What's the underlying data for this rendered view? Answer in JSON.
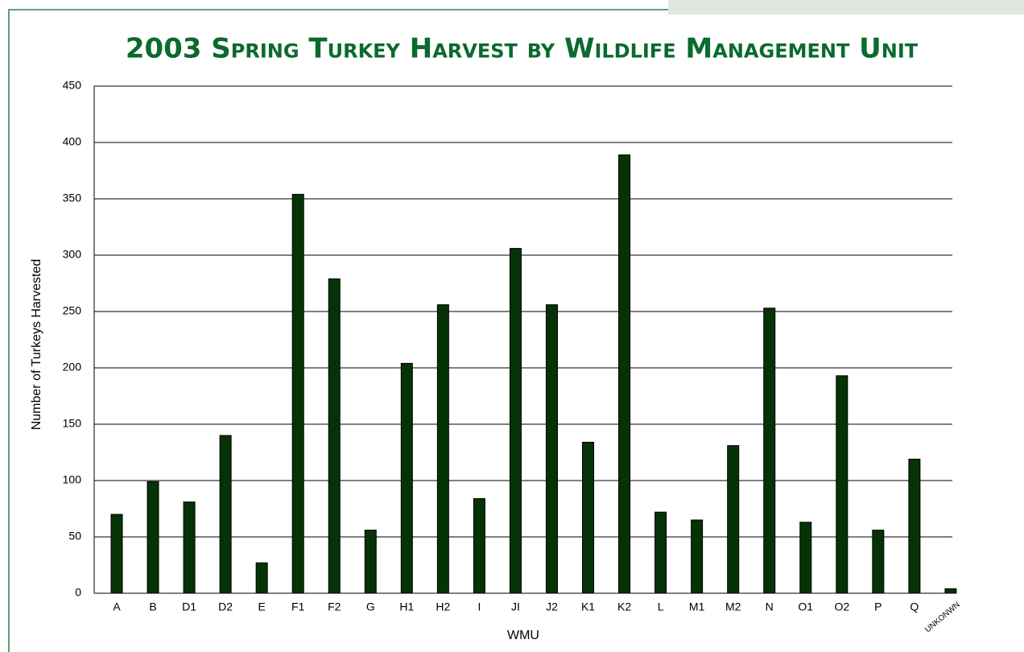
{
  "chart_data": {
    "type": "bar",
    "title": "2003 Spring Turkey Harvest by Wildlife Management Unit",
    "x_label": "WMU",
    "y_label": "Number of Turkeys Harvested",
    "categories": [
      "A",
      "B",
      "D1",
      "D2",
      "E",
      "F1",
      "F2",
      "G",
      "H1",
      "H2",
      "I",
      "JI",
      "J2",
      "K1",
      "K2",
      "L",
      "M1",
      "M2",
      "N",
      "O1",
      "O2",
      "P",
      "Q",
      "UNKONWN"
    ],
    "values": [
      70,
      99,
      81,
      140,
      27,
      354,
      279,
      56,
      204,
      256,
      84,
      306,
      256,
      134,
      389,
      72,
      65,
      131,
      253,
      63,
      193,
      56,
      119,
      4
    ],
    "color": "#063306",
    "ylim": [
      0,
      450
    ],
    "yticks": [
      0,
      50,
      100,
      150,
      200,
      250,
      300,
      350,
      400,
      450
    ],
    "grid": true
  }
}
